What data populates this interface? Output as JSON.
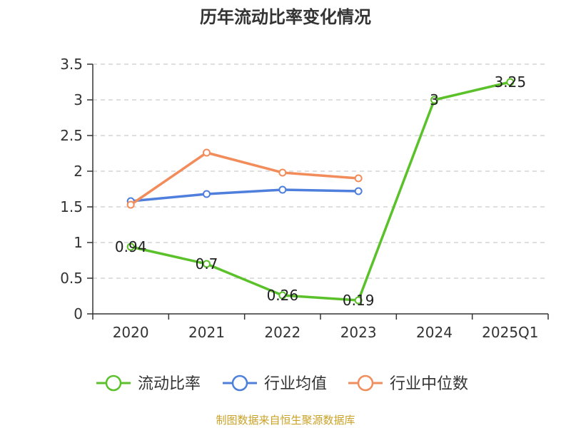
{
  "chart_data": {
    "type": "line",
    "title": "历年流动比率变化情况",
    "categories": [
      "2020",
      "2021",
      "2022",
      "2023",
      "2024",
      "2025Q1"
    ],
    "ylim": [
      0,
      3.5
    ],
    "yticks": [
      "0",
      "0.5",
      "1",
      "1.5",
      "2",
      "2.5",
      "3",
      "3.5"
    ],
    "grid": true,
    "legend_position": "bottom",
    "series": [
      {
        "name": "流动比率",
        "color": "#5bc12a",
        "values": [
          0.94,
          0.7,
          0.26,
          0.19,
          3,
          3.25
        ],
        "labels": [
          "0.94",
          "0.7",
          "0.26",
          "0.19",
          "3",
          "3.25"
        ]
      },
      {
        "name": "行业均值",
        "color": "#4f7fdc",
        "values": [
          1.58,
          1.68,
          1.74,
          1.72,
          null,
          null
        ]
      },
      {
        "name": "行业中位数",
        "color": "#f28c5b",
        "values": [
          1.53,
          2.26,
          1.98,
          1.9,
          null,
          null
        ]
      }
    ],
    "source": "制图数据来自恒生聚源数据库"
  }
}
